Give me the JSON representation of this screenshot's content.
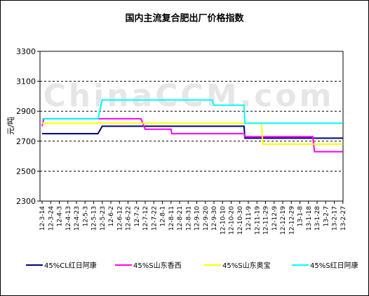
{
  "chart_data": {
    "type": "line",
    "title": "国内主流复合肥出厂价格指数",
    "ylabel": "元/吨",
    "xlabel": "",
    "ylim": [
      2300,
      3300
    ],
    "yticks": [
      2300,
      2500,
      2700,
      2900,
      3100,
      3300
    ],
    "grid": true,
    "legend_position": "bottom",
    "watermark": "ChinaCCM.com",
    "categories": [
      "12-3-14",
      "12-3-24",
      "12-4-3",
      "12-4-13",
      "12-4-23",
      "12-5-3",
      "12-5-13",
      "12-5-23",
      "12-6-2",
      "12-6-12",
      "12-6-22",
      "12-7-2",
      "12-7-12",
      "12-7-22",
      "12-8-1",
      "12-8-11",
      "12-8-21",
      "12-8-31",
      "12-9-10",
      "12-9-20",
      "12-9-30",
      "12-10-10",
      "12-10-20",
      "12-10-30",
      "12-11-9",
      "12-11-19",
      "12-11-29",
      "12-12-9",
      "12-12-19",
      "12-12-29",
      "13-1-8",
      "13-1-18",
      "13-1-28",
      "13-2-7",
      "13-2-17",
      "13-2-27"
    ],
    "series": [
      {
        "name": "45%CL红日阿康",
        "color": "#000080",
        "points": [
          [
            0,
            2750
          ],
          [
            6.5,
            2750
          ],
          [
            7,
            2800
          ],
          [
            23.5,
            2800
          ],
          [
            23.6,
            2720
          ],
          [
            31.5,
            2720
          ],
          [
            31.6,
            2720
          ],
          [
            35,
            2720
          ]
        ]
      },
      {
        "name": "45%S山东香西",
        "color": "#ff00ff",
        "points": [
          [
            0,
            2800
          ],
          [
            0.2,
            2850
          ],
          [
            11.5,
            2850
          ],
          [
            12,
            2780
          ],
          [
            15,
            2780
          ],
          [
            15.1,
            2750
          ],
          [
            23.5,
            2750
          ],
          [
            23.6,
            2730
          ],
          [
            31.5,
            2730
          ],
          [
            31.7,
            2630
          ],
          [
            35,
            2630
          ]
        ]
      },
      {
        "name": "45%S山东奥宝",
        "color": "#ffff00",
        "points": [
          [
            0,
            2820
          ],
          [
            25.5,
            2820
          ],
          [
            25.7,
            2680
          ],
          [
            35,
            2680
          ]
        ]
      },
      {
        "name": "45%S红日阿康",
        "color": "#00ffff",
        "points": [
          [
            0,
            2850
          ],
          [
            6.5,
            2850
          ],
          [
            7,
            2975
          ],
          [
            19.8,
            2975
          ],
          [
            20,
            2940
          ],
          [
            23.5,
            2940
          ],
          [
            23.6,
            2820
          ],
          [
            35,
            2820
          ]
        ]
      }
    ]
  }
}
